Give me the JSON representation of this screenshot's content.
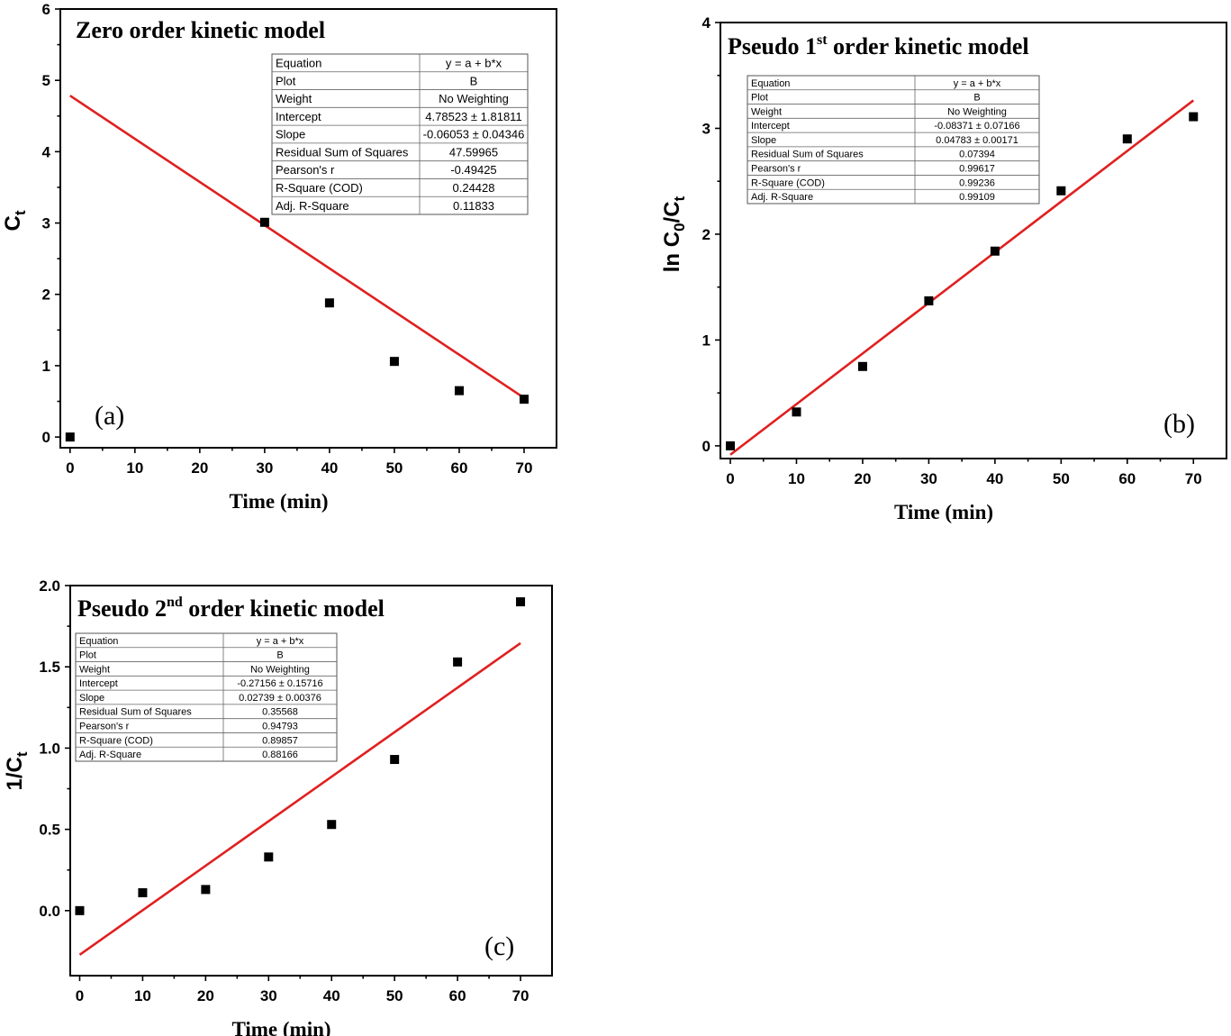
{
  "chart_data": [
    {
      "id": "a",
      "type": "scatter",
      "title": "Zero order kinetic model",
      "panel_label": "(a)",
      "xlabel": "Time (min)",
      "ylabel": "Ct",
      "ylabel_main": "C",
      "ylabel_sub": "t",
      "xlim": [
        -1.5,
        75
      ],
      "ylim": [
        -0.15,
        6
      ],
      "xticks": [
        0,
        10,
        20,
        30,
        40,
        50,
        60,
        70
      ],
      "yticks": [
        0,
        1,
        2,
        3,
        4,
        5,
        6
      ],
      "ytick_labels": [
        "0",
        "1",
        "2",
        "3",
        "4",
        "5",
        "6"
      ],
      "series": [
        {
          "x": [
            0,
            30,
            40,
            50,
            60,
            70
          ],
          "y": [
            0.0,
            3.01,
            1.88,
            1.06,
            0.65,
            0.53
          ]
        }
      ],
      "fit": {
        "intercept": 4.78523,
        "slope": -0.06053,
        "x_range": [
          0,
          70
        ],
        "color": "#e02020"
      },
      "stats_table": [
        [
          "Equation",
          "y = a + b*x"
        ],
        [
          "Plot",
          "B"
        ],
        [
          "Weight",
          "No Weighting"
        ],
        [
          "Intercept",
          "4.78523 ± 1.81811"
        ],
        [
          "Slope",
          "-0.06053 ± 0.04346"
        ],
        [
          "Residual Sum of Squares",
          "47.59965"
        ],
        [
          "Pearson's r",
          "-0.49425"
        ],
        [
          "R-Square (COD)",
          "0.24428"
        ],
        [
          "Adj. R-Square",
          "0.11833"
        ]
      ],
      "legend_placement": "top-right",
      "grid": false
    },
    {
      "id": "b",
      "type": "scatter",
      "title": "Pseudo 1st order kinetic model",
      "title_pre": "Pseudo 1",
      "title_sup": "st",
      "title_post": " order kinetic model",
      "panel_label": "(b)",
      "xlabel": "Time (min)",
      "ylabel": "ln C0/Ct",
      "ylabel_main": "ln C",
      "ylabel_sub1": "0",
      "ylabel_mid": "/C",
      "ylabel_sub2": "t",
      "xlim": [
        -1.5,
        75
      ],
      "ylim": [
        -0.12,
        4
      ],
      "xticks": [
        0,
        10,
        20,
        30,
        40,
        50,
        60,
        70
      ],
      "yticks": [
        0,
        1,
        2,
        3,
        4
      ],
      "ytick_labels": [
        "0",
        "1",
        "2",
        "3",
        "4"
      ],
      "series": [
        {
          "x": [
            0,
            10,
            20,
            30,
            40,
            50,
            60,
            70
          ],
          "y": [
            0.0,
            0.32,
            0.75,
            1.37,
            1.84,
            2.41,
            2.9,
            3.11
          ]
        }
      ],
      "fit": {
        "intercept": -0.08371,
        "slope": 0.04783,
        "x_range": [
          0,
          70
        ],
        "color": "#e02020"
      },
      "stats_table": [
        [
          "Equation",
          "y = a + b*x"
        ],
        [
          "Plot",
          "B"
        ],
        [
          "Weight",
          "No Weighting"
        ],
        [
          "Intercept",
          "-0.08371 ± 0.07166"
        ],
        [
          "Slope",
          "0.04783 ± 0.00171"
        ],
        [
          "Residual Sum of Squares",
          "0.07394"
        ],
        [
          "Pearson's r",
          "0.99617"
        ],
        [
          "R-Square (COD)",
          "0.99236"
        ],
        [
          "Adj. R-Square",
          "0.99109"
        ]
      ],
      "legend_placement": "top-left",
      "grid": false
    },
    {
      "id": "c",
      "type": "scatter",
      "title": "Pseudo 2nd order kinetic model",
      "title_pre": "Pseudo 2",
      "title_sup": "nd",
      "title_post": " order kinetic model",
      "panel_label": "(c)",
      "xlabel": "Time (min)",
      "ylabel": "1/Ct",
      "ylabel_main": "1/C",
      "ylabel_sub": "t",
      "xlim": [
        -1.5,
        75
      ],
      "ylim": [
        -0.4,
        2.0
      ],
      "xticks": [
        0,
        10,
        20,
        30,
        40,
        50,
        60,
        70
      ],
      "yticks": [
        0,
        0.5,
        1.0,
        1.5,
        2.0
      ],
      "ytick_labels": [
        "0.0",
        "0.5",
        "1.0",
        "1.5",
        "2.0"
      ],
      "series": [
        {
          "x": [
            0,
            10,
            20,
            30,
            40,
            50,
            60,
            70
          ],
          "y": [
            0.0,
            0.11,
            0.13,
            0.33,
            0.53,
            0.93,
            1.53,
            1.9
          ]
        }
      ],
      "fit": {
        "intercept": -0.27156,
        "slope": 0.02739,
        "x_range": [
          0,
          70
        ],
        "color": "#e02020"
      },
      "stats_table": [
        [
          "Equation",
          "y = a + b*x"
        ],
        [
          "Plot",
          "B"
        ],
        [
          "Weight",
          "No Weighting"
        ],
        [
          "Intercept",
          "-0.27156 ± 0.15716"
        ],
        [
          "Slope",
          "0.02739 ± 0.00376"
        ],
        [
          "Residual Sum of Squares",
          "0.35568"
        ],
        [
          "Pearson's r",
          "0.94793"
        ],
        [
          "R-Square (COD)",
          "0.89857"
        ],
        [
          "Adj. R-Square",
          "0.88166"
        ]
      ],
      "legend_placement": "top-left",
      "grid": false
    }
  ]
}
